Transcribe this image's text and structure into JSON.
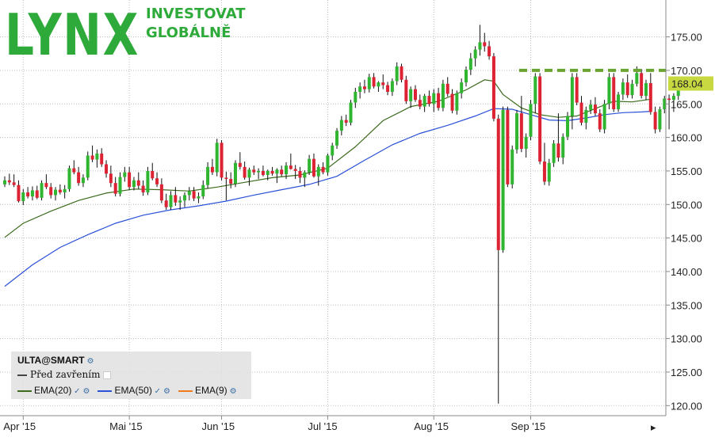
{
  "logo": {
    "word": "LYNX",
    "tagline": [
      "INVESTOVAT",
      "GLOBÁLNĚ"
    ]
  },
  "legend": {
    "symbol": "ULTA@SMART",
    "prev_close_label": "Před zavřením",
    "ema": [
      {
        "label": "EMA(20)",
        "color": "#3d6b1e"
      },
      {
        "label": "EMA(50)",
        "color": "#2a50d8"
      },
      {
        "label": "EMA(9)",
        "color": "#f07a1c"
      }
    ]
  },
  "chart_data": {
    "type": "candlestick",
    "symbol": "ULTA@SMART",
    "x_tick_labels": [
      "Apr '15",
      "Mai '15",
      "Jun '15",
      "Jul '15",
      "Aug '15",
      "Sep '15"
    ],
    "y_tick_labels": [
      "120.00",
      "125.00",
      "130.00",
      "135.00",
      "140.00",
      "145.00",
      "150.00",
      "155.00",
      "160.00",
      "165.00",
      "170.00",
      "175.00"
    ],
    "ylim": [
      118.5,
      180.5
    ],
    "last_price": "168.04",
    "previous_close": 170.0,
    "grid": true,
    "candles": [
      [
        153.0,
        154.2,
        152.6,
        153.6
      ],
      [
        153.6,
        154.6,
        152.9,
        153.3
      ],
      [
        153.3,
        154.5,
        152.6,
        152.9
      ],
      [
        152.9,
        153.6,
        150.3,
        150.5
      ],
      [
        150.5,
        152.3,
        149.9,
        151.8
      ],
      [
        151.8,
        152.6,
        150.9,
        151.2
      ],
      [
        151.2,
        152.7,
        150.6,
        152.1
      ],
      [
        152.1,
        152.8,
        150.8,
        151.0
      ],
      [
        151.0,
        153.6,
        150.6,
        153.2
      ],
      [
        153.2,
        154.5,
        152.3,
        152.6
      ],
      [
        152.6,
        153.2,
        150.9,
        151.4
      ],
      [
        151.4,
        152.6,
        150.6,
        152.2
      ],
      [
        152.2,
        153.0,
        151.5,
        151.8
      ],
      [
        151.8,
        152.9,
        150.9,
        152.3
      ],
      [
        152.3,
        155.8,
        151.9,
        155.4
      ],
      [
        155.4,
        156.6,
        154.5,
        154.8
      ],
      [
        154.8,
        155.6,
        152.8,
        153.2
      ],
      [
        153.2,
        154.5,
        152.6,
        154.0
      ],
      [
        154.0,
        157.9,
        153.6,
        157.3
      ],
      [
        157.3,
        158.8,
        156.3,
        156.7
      ],
      [
        156.7,
        158.2,
        155.5,
        157.6
      ],
      [
        157.6,
        158.4,
        155.6,
        156.0
      ],
      [
        156.0,
        156.6,
        154.0,
        154.6
      ],
      [
        154.6,
        155.8,
        152.6,
        153.2
      ],
      [
        153.2,
        154.1,
        151.2,
        151.6
      ],
      [
        151.6,
        154.8,
        151.2,
        154.1
      ],
      [
        154.1,
        155.6,
        153.4,
        154.8
      ],
      [
        154.8,
        155.6,
        152.2,
        152.6
      ],
      [
        152.6,
        154.1,
        152.1,
        153.6
      ],
      [
        153.6,
        154.8,
        152.3,
        152.8
      ],
      [
        152.8,
        153.6,
        151.3,
        151.8
      ],
      [
        151.8,
        155.6,
        151.4,
        155.0
      ],
      [
        155.0,
        156.2,
        153.6,
        153.9
      ],
      [
        153.9,
        154.8,
        152.6,
        153.0
      ],
      [
        153.0,
        153.9,
        150.2,
        150.6
      ],
      [
        150.6,
        151.6,
        149.2,
        149.6
      ],
      [
        149.6,
        152.0,
        149.2,
        151.4
      ],
      [
        151.4,
        152.6,
        149.8,
        150.3
      ],
      [
        150.3,
        151.2,
        149.2,
        150.6
      ],
      [
        150.6,
        151.8,
        149.6,
        151.4
      ],
      [
        151.4,
        152.6,
        150.6,
        152.0
      ],
      [
        152.0,
        152.6,
        150.5,
        150.9
      ],
      [
        150.9,
        151.8,
        150.2,
        151.2
      ],
      [
        151.2,
        153.6,
        150.8,
        152.9
      ],
      [
        152.9,
        156.3,
        152.4,
        155.6
      ],
      [
        155.6,
        156.8,
        154.4,
        154.8
      ],
      [
        154.8,
        159.8,
        154.2,
        159.2
      ],
      [
        159.2,
        159.6,
        153.6,
        154.0
      ],
      [
        154.0,
        154.9,
        150.6,
        153.8
      ],
      [
        153.8,
        154.8,
        152.4,
        153.1
      ],
      [
        153.1,
        156.6,
        152.6,
        156.2
      ],
      [
        156.2,
        157.8,
        155.2,
        155.6
      ],
      [
        155.6,
        156.4,
        153.7,
        154.0
      ],
      [
        154.0,
        155.5,
        152.8,
        155.2
      ],
      [
        155.2,
        155.8,
        154.4,
        154.8
      ],
      [
        154.8,
        155.4,
        153.8,
        155.0
      ],
      [
        155.0,
        155.8,
        154.2,
        154.4
      ],
      [
        154.4,
        155.2,
        153.6,
        155.0
      ],
      [
        155.0,
        155.6,
        154.3,
        154.6
      ],
      [
        154.6,
        155.4,
        153.2,
        155.2
      ],
      [
        155.2,
        155.8,
        154.2,
        154.5
      ],
      [
        154.5,
        156.3,
        153.8,
        155.8
      ],
      [
        155.8,
        157.6,
        155.2,
        155.3
      ],
      [
        155.3,
        155.9,
        153.8,
        155.0
      ],
      [
        155.0,
        155.6,
        153.2,
        154.0
      ],
      [
        154.0,
        155.1,
        152.6,
        154.8
      ],
      [
        154.8,
        157.4,
        154.4,
        156.8
      ],
      [
        156.8,
        157.6,
        154.0,
        154.2
      ],
      [
        154.2,
        156.0,
        152.8,
        155.6
      ],
      [
        155.6,
        156.3,
        154.5,
        154.8
      ],
      [
        154.8,
        157.6,
        154.3,
        157.3
      ],
      [
        157.3,
        159.2,
        156.6,
        158.8
      ],
      [
        158.8,
        161.4,
        158.3,
        161.0
      ],
      [
        161.0,
        163.2,
        160.3,
        162.6
      ],
      [
        162.6,
        163.4,
        161.7,
        162.2
      ],
      [
        162.2,
        165.6,
        161.8,
        165.2
      ],
      [
        165.2,
        167.4,
        164.4,
        166.8
      ],
      [
        166.8,
        168.2,
        165.8,
        167.6
      ],
      [
        167.6,
        168.6,
        166.6,
        167.2
      ],
      [
        167.2,
        169.5,
        166.7,
        169.0
      ],
      [
        169.0,
        169.6,
        167.3,
        167.6
      ],
      [
        167.6,
        168.4,
        166.8,
        168.2
      ],
      [
        168.2,
        169.4,
        167.2,
        167.8
      ],
      [
        167.8,
        168.3,
        166.3,
        166.8
      ],
      [
        166.8,
        168.8,
        166.2,
        168.4
      ],
      [
        168.4,
        171.2,
        167.8,
        170.6
      ],
      [
        170.6,
        171.0,
        168.2,
        168.6
      ],
      [
        168.6,
        169.2,
        165.0,
        165.4
      ],
      [
        165.4,
        167.6,
        164.4,
        167.2
      ],
      [
        167.2,
        167.8,
        165.3,
        165.6
      ],
      [
        165.6,
        166.4,
        164.2,
        164.6
      ],
      [
        164.6,
        166.5,
        163.8,
        166.2
      ],
      [
        166.2,
        167.0,
        164.6,
        165.0
      ],
      [
        165.0,
        167.2,
        163.8,
        166.6
      ],
      [
        166.6,
        167.4,
        164.0,
        164.4
      ],
      [
        164.4,
        168.6,
        163.9,
        168.0
      ],
      [
        168.0,
        169.0,
        166.1,
        166.5
      ],
      [
        166.5,
        167.2,
        163.6,
        164.0
      ],
      [
        164.0,
        167.0,
        163.4,
        166.6
      ],
      [
        166.6,
        168.8,
        165.8,
        168.2
      ],
      [
        168.2,
        170.6,
        167.6,
        170.1
      ],
      [
        170.1,
        172.6,
        169.3,
        171.8
      ],
      [
        171.8,
        173.6,
        170.6,
        173.1
      ],
      [
        173.1,
        176.8,
        172.2,
        174.2
      ],
      [
        174.2,
        175.6,
        172.8,
        173.6
      ],
      [
        173.6,
        174.4,
        171.6,
        172.1
      ],
      [
        172.1,
        172.6,
        162.4,
        162.8
      ],
      [
        162.8,
        163.4,
        120.3,
        143.2
      ],
      [
        143.2,
        164.6,
        142.8,
        164.1
      ],
      [
        164.1,
        164.6,
        152.6,
        153.0
      ],
      [
        153.0,
        158.8,
        152.4,
        158.2
      ],
      [
        158.2,
        164.1,
        157.6,
        163.6
      ],
      [
        163.6,
        166.2,
        157.8,
        158.3
      ],
      [
        158.3,
        160.6,
        157.0,
        160.1
      ],
      [
        160.1,
        165.6,
        159.6,
        165.0
      ],
      [
        165.0,
        169.6,
        163.6,
        169.1
      ],
      [
        169.1,
        169.6,
        156.0,
        156.4
      ],
      [
        156.4,
        159.2,
        152.9,
        153.4
      ],
      [
        153.4,
        156.8,
        152.8,
        156.2
      ],
      [
        156.2,
        159.6,
        155.6,
        159.1
      ],
      [
        159.1,
        163.6,
        156.4,
        157.0
      ],
      [
        157.0,
        160.6,
        156.0,
        160.1
      ],
      [
        160.1,
        163.8,
        159.6,
        163.2
      ],
      [
        163.2,
        169.6,
        161.2,
        169.0
      ],
      [
        169.0,
        169.6,
        164.8,
        165.2
      ],
      [
        165.2,
        166.2,
        161.8,
        162.2
      ],
      [
        162.2,
        164.6,
        161.2,
        164.1
      ],
      [
        164.1,
        165.6,
        163.5,
        164.9
      ],
      [
        164.9,
        166.0,
        163.2,
        163.6
      ],
      [
        163.6,
        164.2,
        160.8,
        161.2
      ],
      [
        161.2,
        165.6,
        160.6,
        165.0
      ],
      [
        165.0,
        169.6,
        164.2,
        169.0
      ],
      [
        169.0,
        169.6,
        163.8,
        164.2
      ],
      [
        164.2,
        166.8,
        163.8,
        166.4
      ],
      [
        166.4,
        168.8,
        165.6,
        168.2
      ],
      [
        168.2,
        169.4,
        165.9,
        166.3
      ],
      [
        166.3,
        168.6,
        165.8,
        168.0
      ],
      [
        168.0,
        170.6,
        167.6,
        169.6
      ],
      [
        169.6,
        170.2,
        165.8,
        166.2
      ],
      [
        166.2,
        168.6,
        165.6,
        168.1
      ],
      [
        168.1,
        169.6,
        163.4,
        163.8
      ],
      [
        163.8,
        164.6,
        160.6,
        161.2
      ],
      [
        161.2,
        164.6,
        160.8,
        164.2
      ],
      [
        164.2,
        166.2,
        163.6,
        165.8
      ],
      [
        165.8,
        166.4,
        161.2,
        165.6
      ],
      [
        165.6,
        166.6,
        163.8,
        166.2
      ],
      [
        166.2,
        168.7,
        165.6,
        168.04
      ]
    ],
    "ema20": [
      [
        0,
        145.1
      ],
      [
        4,
        147.2
      ],
      [
        10,
        149.0
      ],
      [
        16,
        150.6
      ],
      [
        22,
        151.7
      ],
      [
        28,
        152.3
      ],
      [
        34,
        152.2
      ],
      [
        40,
        152.0
      ],
      [
        46,
        152.6
      ],
      [
        52,
        153.3
      ],
      [
        58,
        154.0
      ],
      [
        64,
        154.4
      ],
      [
        70,
        155.4
      ],
      [
        76,
        158.6
      ],
      [
        82,
        162.5
      ],
      [
        88,
        164.6
      ],
      [
        94,
        165.4
      ],
      [
        100,
        167.1
      ],
      [
        104,
        168.6
      ],
      [
        106,
        168.4
      ],
      [
        108,
        166.4
      ],
      [
        112,
        164.4
      ],
      [
        116,
        163.4
      ],
      [
        120,
        163.0
      ],
      [
        124,
        163.2
      ],
      [
        128,
        164.3
      ],
      [
        132,
        165.4
      ],
      [
        136,
        165.3
      ],
      [
        140,
        165.7
      ]
    ],
    "ema50": [
      [
        0,
        137.8
      ],
      [
        6,
        141.0
      ],
      [
        12,
        143.6
      ],
      [
        18,
        145.5
      ],
      [
        24,
        147.2
      ],
      [
        30,
        148.4
      ],
      [
        36,
        149.2
      ],
      [
        42,
        149.8
      ],
      [
        48,
        150.5
      ],
      [
        54,
        151.4
      ],
      [
        60,
        152.2
      ],
      [
        66,
        153.0
      ],
      [
        72,
        154.2
      ],
      [
        78,
        156.6
      ],
      [
        84,
        158.9
      ],
      [
        90,
        160.6
      ],
      [
        96,
        161.8
      ],
      [
        102,
        163.2
      ],
      [
        106,
        164.3
      ],
      [
        110,
        164.2
      ],
      [
        114,
        163.4
      ],
      [
        118,
        162.6
      ],
      [
        122,
        162.5
      ],
      [
        126,
        162.9
      ],
      [
        130,
        163.4
      ],
      [
        134,
        163.7
      ],
      [
        138,
        163.8
      ],
      [
        140,
        163.9
      ]
    ]
  }
}
